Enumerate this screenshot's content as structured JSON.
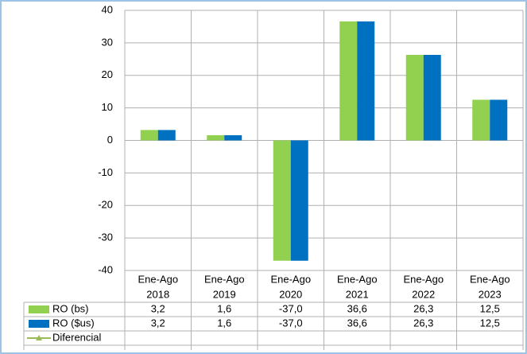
{
  "chart_data": {
    "type": "bar",
    "categories": [
      [
        "Ene-Ago",
        "2018"
      ],
      [
        "Ene-Ago",
        "2019"
      ],
      [
        "Ene-Ago",
        "2020"
      ],
      [
        "Ene-Ago",
        "2021"
      ],
      [
        "Ene-Ago",
        "2022"
      ],
      [
        "Ene-Ago",
        "2023"
      ]
    ],
    "series": [
      {
        "name": "RO (bs)",
        "color": "#92d050",
        "values": [
          3.2,
          1.6,
          -37.0,
          36.6,
          26.3,
          12.5
        ],
        "value_labels": [
          "3,2",
          "1,6",
          "-37,0",
          "36,6",
          "26,3",
          "12,5"
        ]
      },
      {
        "name": "RO ($us)",
        "color": "#0070c0",
        "values": [
          3.2,
          1.6,
          -37.0,
          36.6,
          26.3,
          12.5
        ],
        "value_labels": [
          "3,2",
          "1,6",
          "-37,0",
          "36,6",
          "26,3",
          "12,5"
        ]
      },
      {
        "name": "Diferencial",
        "color": "#9bbb59",
        "values": [
          null,
          null,
          null,
          null,
          null,
          null
        ]
      }
    ],
    "ylim": [
      -40,
      40
    ],
    "yticks": [
      -40,
      -30,
      -20,
      -10,
      0,
      10,
      20,
      30,
      40
    ],
    "grid": true
  }
}
